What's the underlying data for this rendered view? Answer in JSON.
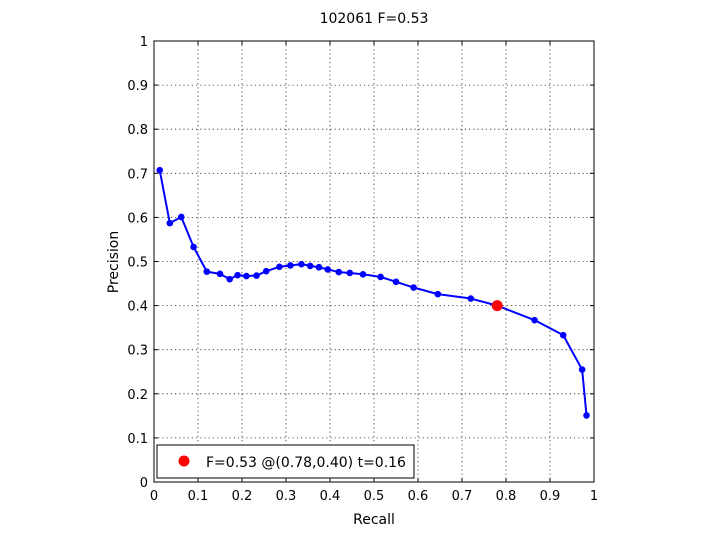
{
  "chart_data": {
    "type": "line",
    "title": "102061 F=0.53",
    "xlabel": "Recall",
    "ylabel": "Precision",
    "xlim": [
      0,
      1
    ],
    "ylim": [
      0,
      1
    ],
    "xticks": [
      "0",
      "0.1",
      "0.2",
      "0.3",
      "0.4",
      "0.5",
      "0.6",
      "0.7",
      "0.8",
      "0.9",
      "1"
    ],
    "yticks": [
      "0",
      "0.1",
      "0.2",
      "0.3",
      "0.4",
      "0.5",
      "0.6",
      "0.7",
      "0.8",
      "0.9",
      "1"
    ],
    "grid": true,
    "legend_placement": "bottom-left",
    "series": [
      {
        "color": "#0000ff",
        "x": [
          0.013,
          0.036,
          0.062,
          0.09,
          0.12,
          0.15,
          0.172,
          0.19,
          0.21,
          0.233,
          0.255,
          0.285,
          0.31,
          0.335,
          0.355,
          0.375,
          0.395,
          0.42,
          0.445,
          0.475,
          0.515,
          0.55,
          0.59,
          0.645,
          0.72,
          0.78,
          0.865,
          0.93,
          0.973,
          0.983
        ],
        "y": [
          0.707,
          0.587,
          0.601,
          0.533,
          0.477,
          0.472,
          0.46,
          0.469,
          0.467,
          0.468,
          0.478,
          0.488,
          0.491,
          0.494,
          0.49,
          0.487,
          0.482,
          0.476,
          0.474,
          0.471,
          0.465,
          0.454,
          0.441,
          0.426,
          0.416,
          0.4,
          0.367,
          0.333,
          0.255,
          0.151
        ]
      }
    ],
    "highlight_point": {
      "x": 0.78,
      "y": 0.4,
      "color": "#ff0000",
      "legend_label": "F=0.53 @(0.78,0.40) t=0.16"
    }
  }
}
